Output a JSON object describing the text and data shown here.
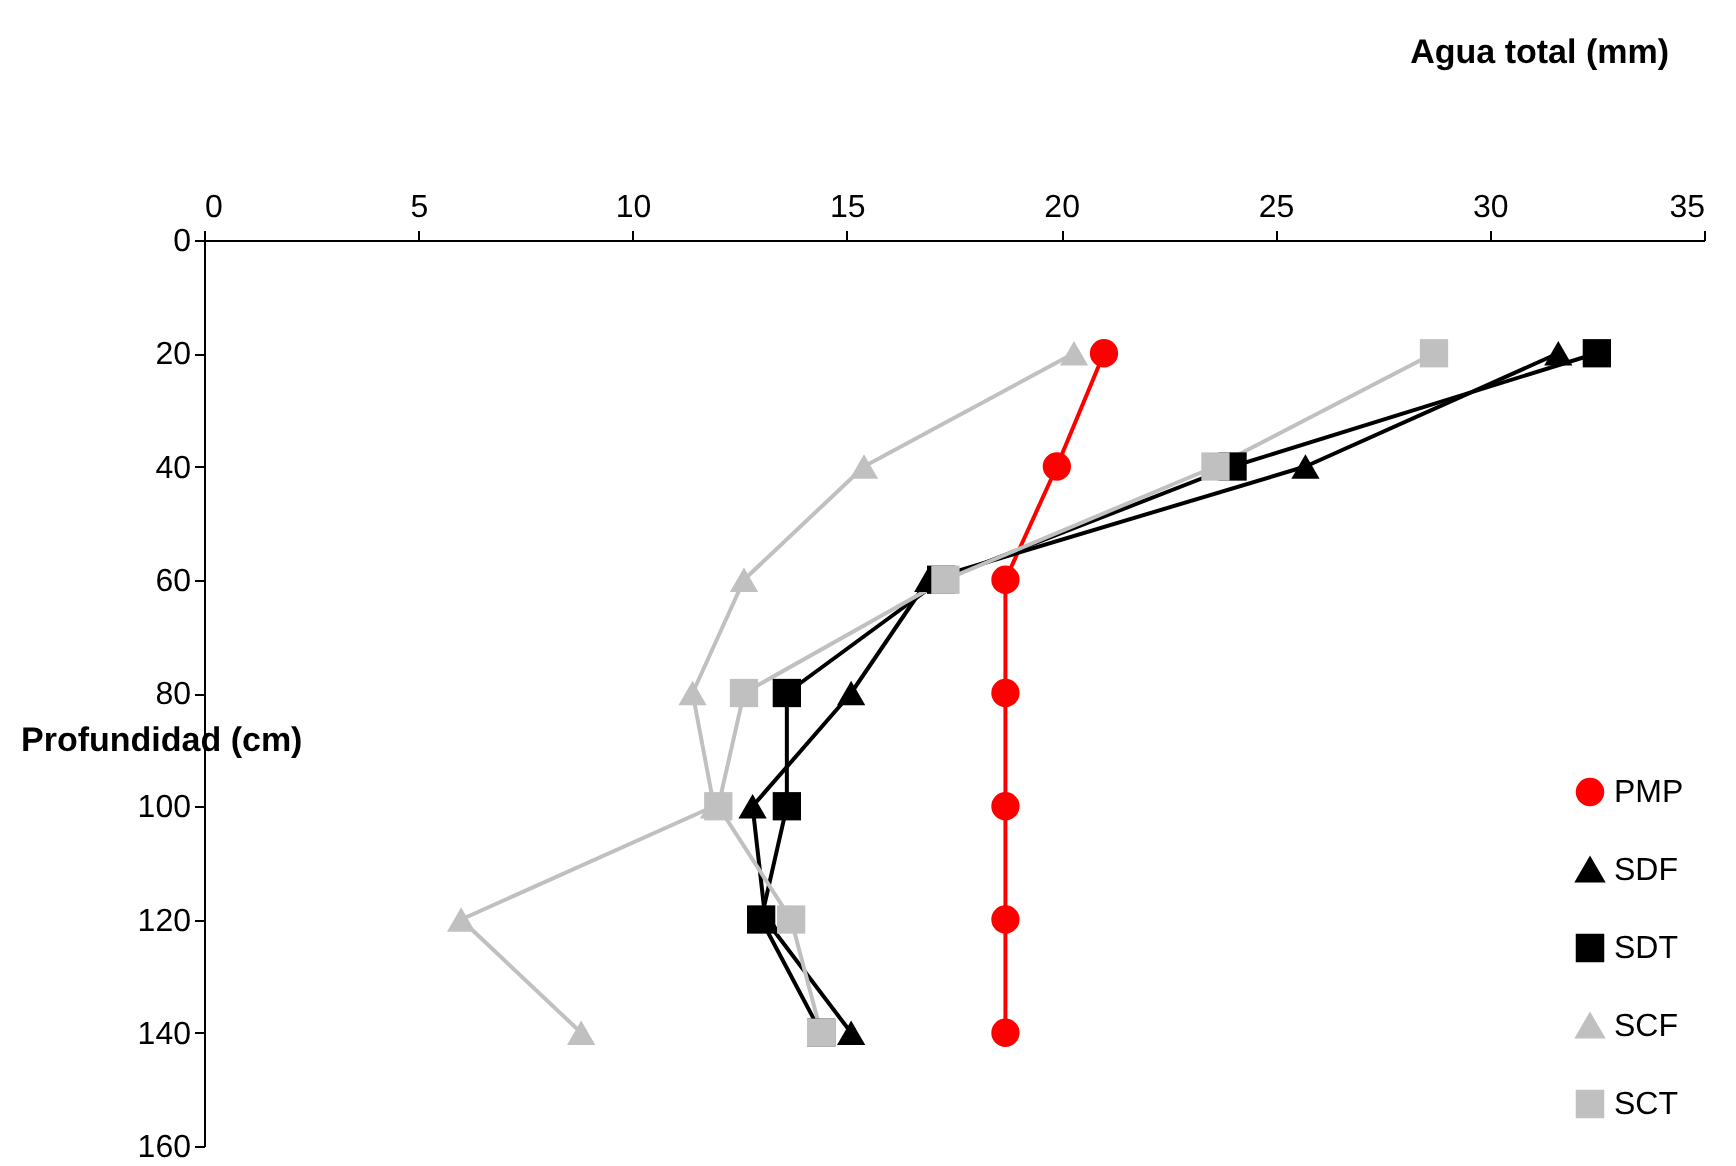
{
  "chart_data": {
    "type": "line",
    "xlabel": "Agua total (mm)",
    "ylabel": "Profundidad (cm)",
    "xlim": [
      0,
      35
    ],
    "xticks": [
      0,
      5,
      10,
      15,
      20,
      25,
      30,
      35
    ],
    "ylim": [
      160,
      0
    ],
    "yticks": [
      0,
      20,
      40,
      60,
      80,
      100,
      120,
      140,
      160
    ],
    "grid": false,
    "legend": "bottom right",
    "series": [
      {
        "name": "PMP",
        "color": "#ff0000",
        "marker": "circle",
        "x": [
          21.0,
          19.9,
          18.7,
          18.7,
          18.7,
          18.7,
          18.7
        ],
        "values": [
          20,
          40,
          60,
          80,
          100,
          120,
          140
        ]
      },
      {
        "name": "SDF",
        "color": "#000000",
        "marker": "triangle",
        "x": [
          31.6,
          25.7,
          16.9,
          15.1,
          12.8,
          13.1,
          15.1
        ],
        "values": [
          20,
          40,
          60,
          80,
          100,
          120,
          140
        ]
      },
      {
        "name": "SDT",
        "color": "#000000",
        "marker": "square",
        "x": [
          32.5,
          24.0,
          17.2,
          13.6,
          13.6,
          13.0,
          14.4
        ],
        "values": [
          20,
          40,
          60,
          80,
          100,
          120,
          140
        ]
      },
      {
        "name": "SCF",
        "color": "#c0c0c0",
        "marker": "triangle",
        "x": [
          20.3,
          15.4,
          12.6,
          11.4,
          11.9,
          6.0,
          8.8
        ],
        "values": [
          20,
          40,
          60,
          80,
          100,
          120,
          140
        ]
      },
      {
        "name": "SCT",
        "color": "#c0c0c0",
        "marker": "square",
        "x": [
          28.7,
          23.6,
          17.3,
          12.6,
          12.0,
          13.7,
          14.4
        ],
        "values": [
          20,
          40,
          60,
          80,
          100,
          120,
          140
        ]
      }
    ]
  }
}
